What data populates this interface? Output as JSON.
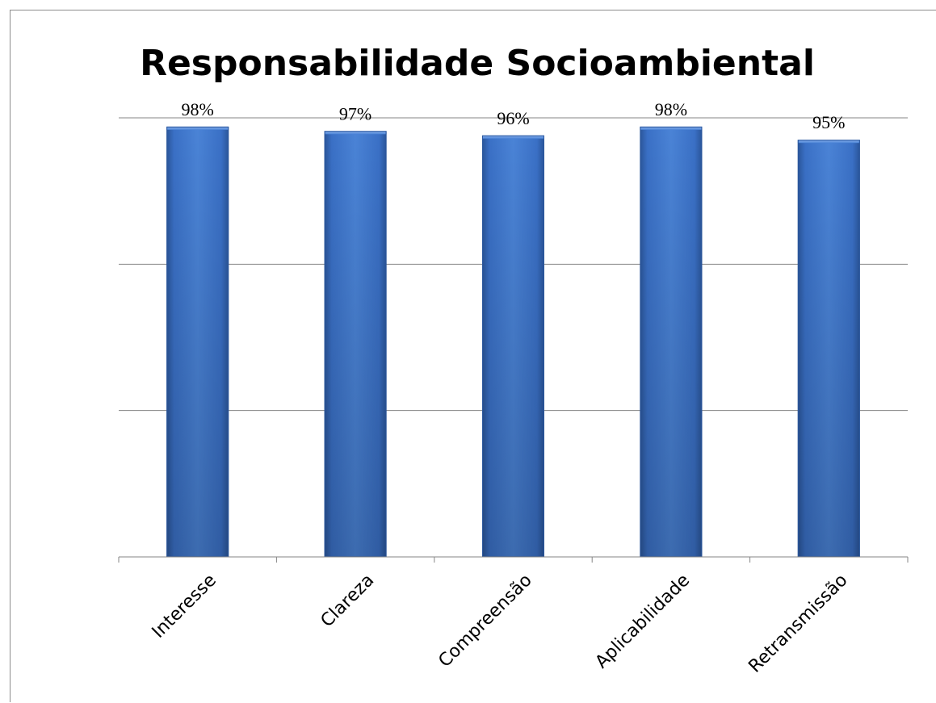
{
  "chart_data": {
    "type": "bar",
    "title": "Responsabilidade Socioambiental",
    "categories": [
      "Interesse",
      "Clareza",
      "Compreensão",
      "Aplicabilidade",
      "Retransmissão"
    ],
    "values": [
      98,
      97,
      96,
      98,
      95
    ],
    "data_labels": [
      "98%",
      "97%",
      "96%",
      "98%",
      "95%"
    ],
    "ylim": [
      0,
      100
    ],
    "gridlines": true,
    "bar_color": "#3a6fc4",
    "legend": "none"
  }
}
